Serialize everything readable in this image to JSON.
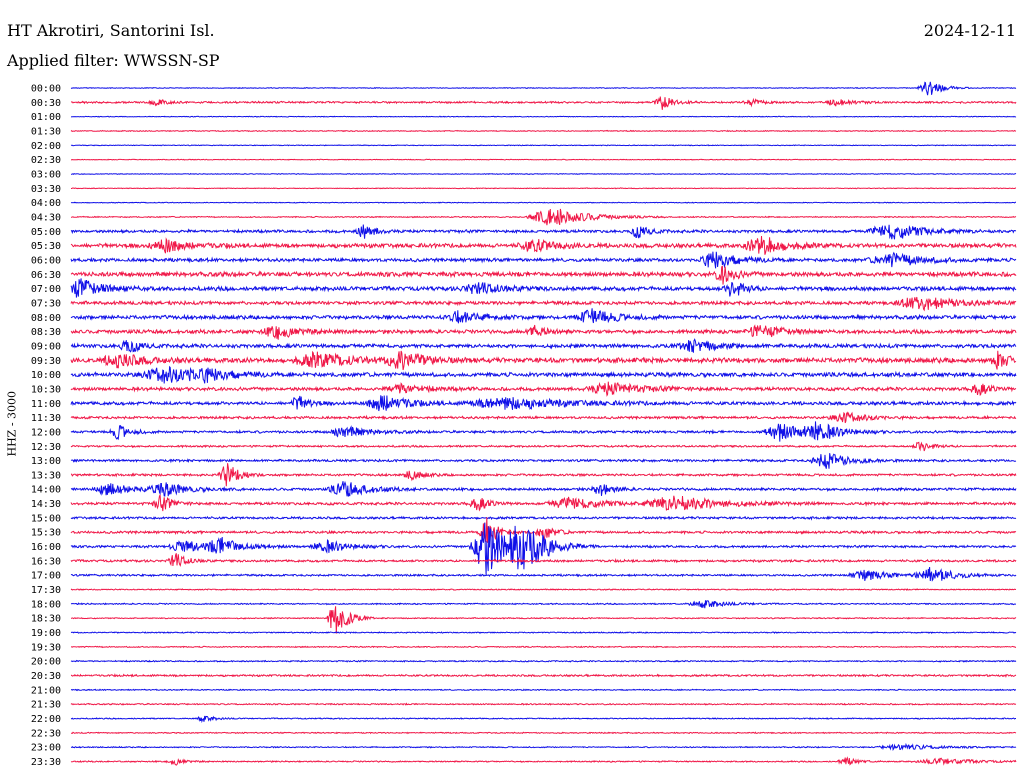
{
  "header": {
    "station": "HT Akrotiri, Santorini Isl.",
    "date": "2024-12-11",
    "filter": "Applied filter: WWSSN-SP"
  },
  "colors": {
    "even_trace": "#1010e8",
    "odd_trace": "#f01848"
  },
  "chart_data": {
    "type": "line",
    "title": "HT Akrotiri, Santorini Isl.",
    "subtitle": "Applied filter: WWSSN-SP",
    "ylabel": "HHZ - 3000",
    "xlabel": "",
    "grid": false,
    "legend": "none",
    "row_labels": [
      "00:00",
      "00:30",
      "01:00",
      "01:30",
      "02:00",
      "02:30",
      "03:00",
      "03:30",
      "04:00",
      "04:30",
      "05:00",
      "05:30",
      "06:00",
      "06:30",
      "07:00",
      "07:30",
      "08:00",
      "08:30",
      "09:00",
      "09:30",
      "10:00",
      "10:30",
      "11:00",
      "11:30",
      "12:00",
      "12:30",
      "13:00",
      "13:30",
      "14:00",
      "14:30",
      "15:00",
      "15:30",
      "16:00",
      "16:30",
      "17:00",
      "17:30",
      "18:00",
      "18:30",
      "19:00",
      "19:30",
      "20:00",
      "20:30",
      "21:00",
      "21:30",
      "22:00",
      "22:30",
      "23:00",
      "23:30"
    ],
    "noise_levels": [
      0.4,
      1.0,
      0.4,
      0.5,
      0.4,
      0.4,
      0.4,
      0.4,
      0.4,
      0.6,
      1.5,
      2.2,
      1.8,
      2.4,
      2.2,
      1.8,
      2.0,
      2.0,
      2.0,
      2.6,
      2.2,
      1.8,
      1.8,
      1.3,
      1.3,
      1.0,
      1.2,
      1.2,
      1.4,
      1.4,
      1.2,
      1.3,
      1.2,
      1.2,
      1.0,
      0.6,
      0.7,
      0.6,
      0.6,
      0.6,
      0.7,
      1.0,
      0.6,
      0.7,
      0.6,
      0.6,
      0.6,
      0.7
    ],
    "events": [
      {
        "row": 0,
        "t": 0.907,
        "amp": 9,
        "dur": 0.012
      },
      {
        "row": 1,
        "t": 0.625,
        "amp": 7,
        "dur": 0.01
      },
      {
        "row": 1,
        "t": 0.09,
        "amp": 3,
        "dur": 0.01
      },
      {
        "row": 1,
        "t": 0.72,
        "amp": 3,
        "dur": 0.01
      },
      {
        "row": 1,
        "t": 0.81,
        "amp": 4,
        "dur": 0.012
      },
      {
        "row": 9,
        "t": 0.51,
        "amp": 10,
        "dur": 0.03
      },
      {
        "row": 10,
        "t": 0.31,
        "amp": 7,
        "dur": 0.01
      },
      {
        "row": 10,
        "t": 0.6,
        "amp": 6,
        "dur": 0.01
      },
      {
        "row": 10,
        "t": 0.87,
        "amp": 8,
        "dur": 0.03
      },
      {
        "row": 11,
        "t": 0.1,
        "amp": 6,
        "dur": 0.02
      },
      {
        "row": 11,
        "t": 0.49,
        "amp": 6,
        "dur": 0.02
      },
      {
        "row": 11,
        "t": 0.73,
        "amp": 10,
        "dur": 0.02
      },
      {
        "row": 12,
        "t": 0.68,
        "amp": 9,
        "dur": 0.02
      },
      {
        "row": 12,
        "t": 0.87,
        "amp": 6,
        "dur": 0.03
      },
      {
        "row": 13,
        "t": 0.69,
        "amp": 9,
        "dur": 0.01
      },
      {
        "row": 14,
        "t": 0.01,
        "amp": 9,
        "dur": 0.02
      },
      {
        "row": 14,
        "t": 0.43,
        "amp": 6,
        "dur": 0.02
      },
      {
        "row": 14,
        "t": 0.7,
        "amp": 10,
        "dur": 0.01
      },
      {
        "row": 15,
        "t": 0.9,
        "amp": 7,
        "dur": 0.03
      },
      {
        "row": 16,
        "t": 0.41,
        "amp": 6,
        "dur": 0.02
      },
      {
        "row": 16,
        "t": 0.55,
        "amp": 8,
        "dur": 0.02
      },
      {
        "row": 17,
        "t": 0.22,
        "amp": 7,
        "dur": 0.02
      },
      {
        "row": 17,
        "t": 0.49,
        "amp": 6,
        "dur": 0.01
      },
      {
        "row": 17,
        "t": 0.73,
        "amp": 6,
        "dur": 0.02
      },
      {
        "row": 18,
        "t": 0.06,
        "amp": 7,
        "dur": 0.01
      },
      {
        "row": 18,
        "t": 0.66,
        "amp": 6,
        "dur": 0.02
      },
      {
        "row": 19,
        "t": 0.05,
        "amp": 7,
        "dur": 0.02
      },
      {
        "row": 19,
        "t": 0.26,
        "amp": 7,
        "dur": 0.03
      },
      {
        "row": 19,
        "t": 0.35,
        "amp": 9,
        "dur": 0.02
      },
      {
        "row": 19,
        "t": 0.98,
        "amp": 8,
        "dur": 0.01
      },
      {
        "row": 20,
        "t": 0.1,
        "amp": 8,
        "dur": 0.03
      },
      {
        "row": 20,
        "t": 0.14,
        "amp": 6,
        "dur": 0.02
      },
      {
        "row": 21,
        "t": 0.35,
        "amp": 5,
        "dur": 0.02
      },
      {
        "row": 21,
        "t": 0.57,
        "amp": 6,
        "dur": 0.03
      },
      {
        "row": 21,
        "t": 0.96,
        "amp": 6,
        "dur": 0.01
      },
      {
        "row": 22,
        "t": 0.24,
        "amp": 7,
        "dur": 0.01
      },
      {
        "row": 22,
        "t": 0.33,
        "amp": 9,
        "dur": 0.02
      },
      {
        "row": 22,
        "t": 0.46,
        "amp": 6,
        "dur": 0.05
      },
      {
        "row": 23,
        "t": 0.82,
        "amp": 5,
        "dur": 0.02
      },
      {
        "row": 24,
        "t": 0.05,
        "amp": 7,
        "dur": 0.01
      },
      {
        "row": 24,
        "t": 0.29,
        "amp": 6,
        "dur": 0.02
      },
      {
        "row": 24,
        "t": 0.75,
        "amp": 9,
        "dur": 0.02
      },
      {
        "row": 24,
        "t": 0.79,
        "amp": 9,
        "dur": 0.02
      },
      {
        "row": 25,
        "t": 0.9,
        "amp": 6,
        "dur": 0.01
      },
      {
        "row": 26,
        "t": 0.8,
        "amp": 8,
        "dur": 0.02
      },
      {
        "row": 27,
        "t": 0.165,
        "amp": 12,
        "dur": 0.01
      },
      {
        "row": 27,
        "t": 0.36,
        "amp": 5,
        "dur": 0.01
      },
      {
        "row": 28,
        "t": 0.04,
        "amp": 6,
        "dur": 0.02
      },
      {
        "row": 28,
        "t": 0.1,
        "amp": 6,
        "dur": 0.02
      },
      {
        "row": 28,
        "t": 0.29,
        "amp": 8,
        "dur": 0.02
      },
      {
        "row": 28,
        "t": 0.56,
        "amp": 7,
        "dur": 0.01
      },
      {
        "row": 29,
        "t": 0.095,
        "amp": 8,
        "dur": 0.01
      },
      {
        "row": 29,
        "t": 0.43,
        "amp": 7,
        "dur": 0.01
      },
      {
        "row": 29,
        "t": 0.53,
        "amp": 6,
        "dur": 0.03
      },
      {
        "row": 29,
        "t": 0.64,
        "amp": 8,
        "dur": 0.04
      },
      {
        "row": 31,
        "t": 0.44,
        "amp": 14,
        "dur": 0.01
      },
      {
        "row": 31,
        "t": 0.5,
        "amp": 7,
        "dur": 0.01
      },
      {
        "row": 32,
        "t": 0.44,
        "amp": 30,
        "dur": 0.02
      },
      {
        "row": 32,
        "t": 0.48,
        "amp": 24,
        "dur": 0.02
      },
      {
        "row": 32,
        "t": 0.12,
        "amp": 6,
        "dur": 0.02
      },
      {
        "row": 32,
        "t": 0.16,
        "amp": 8,
        "dur": 0.02
      },
      {
        "row": 32,
        "t": 0.27,
        "amp": 6,
        "dur": 0.02
      },
      {
        "row": 33,
        "t": 0.11,
        "amp": 8,
        "dur": 0.01
      },
      {
        "row": 34,
        "t": 0.84,
        "amp": 5,
        "dur": 0.02
      },
      {
        "row": 34,
        "t": 0.91,
        "amp": 8,
        "dur": 0.02
      },
      {
        "row": 36,
        "t": 0.67,
        "amp": 4,
        "dur": 0.02
      },
      {
        "row": 37,
        "t": 0.28,
        "amp": 22,
        "dur": 0.01
      },
      {
        "row": 44,
        "t": 0.14,
        "amp": 3,
        "dur": 0.01
      },
      {
        "row": 46,
        "t": 0.88,
        "amp": 3,
        "dur": 0.03
      },
      {
        "row": 47,
        "t": 0.11,
        "amp": 4,
        "dur": 0.01
      },
      {
        "row": 47,
        "t": 0.82,
        "amp": 4,
        "dur": 0.01
      },
      {
        "row": 47,
        "t": 0.92,
        "amp": 3,
        "dur": 0.03
      }
    ]
  }
}
